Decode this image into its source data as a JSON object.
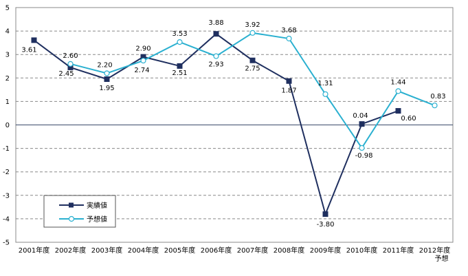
{
  "chart_data": {
    "type": "line",
    "categories": [
      "2001年度",
      "2002年度",
      "2003年度",
      "2004年度",
      "2005年度",
      "2006年度",
      "2007年度",
      "2008年度",
      "2009年度",
      "2010年度",
      "2011年度",
      "2012年度\n予想"
    ],
    "ylim": [
      -5,
      5
    ],
    "yticks": [
      -5,
      -4,
      -3,
      -2,
      -1,
      0,
      1,
      2,
      3,
      4,
      5
    ],
    "grid": true,
    "legend_placement": "bottom-left",
    "series": [
      {
        "name": "実績値",
        "color": "#1f2f5f",
        "marker": "square",
        "values": [
          3.61,
          2.45,
          1.95,
          2.9,
          2.51,
          3.88,
          2.75,
          1.87,
          -3.8,
          0.04,
          0.6,
          null
        ],
        "labels": [
          "3.61",
          "2.45",
          "1.95",
          "2.90",
          "2.51",
          "3.88",
          "2.75",
          "1.87",
          "-3.80",
          "0.04",
          "0.60",
          null
        ]
      },
      {
        "name": "予想値",
        "color": "#2ab0d0",
        "marker": "circle",
        "values": [
          null,
          2.6,
          2.2,
          2.74,
          3.53,
          2.93,
          3.92,
          3.68,
          1.31,
          -0.98,
          1.44,
          0.83
        ],
        "labels": [
          null,
          "2.60",
          "2.20",
          "2.74",
          "3.53",
          "2.93",
          "3.92",
          "3.68",
          "1.31",
          "-0.98",
          "1.44",
          "0.83"
        ]
      }
    ]
  }
}
